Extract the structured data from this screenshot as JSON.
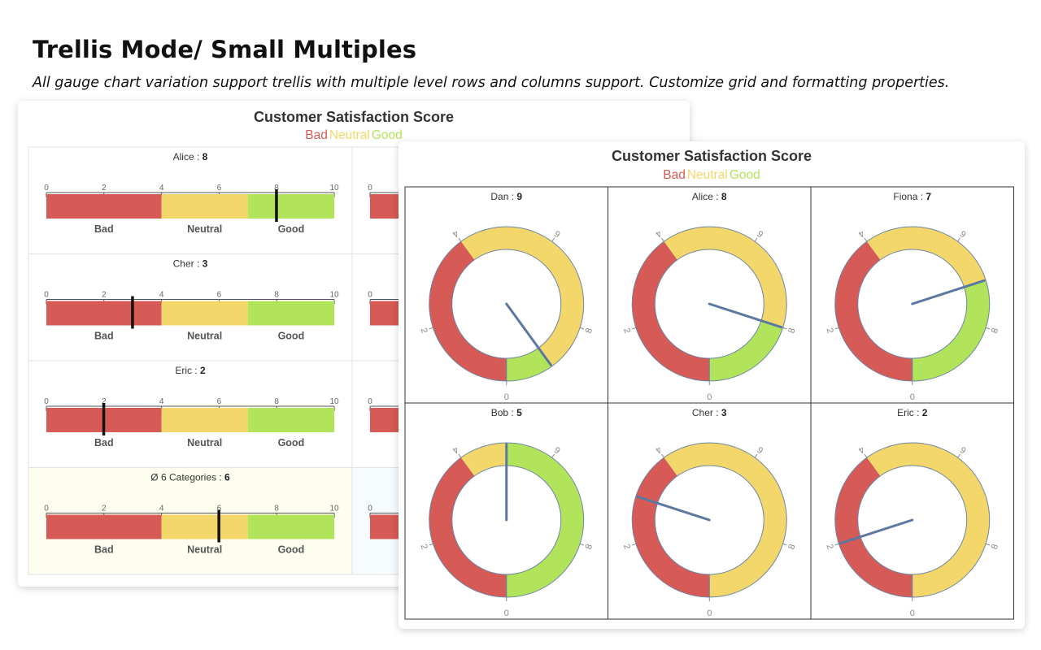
{
  "header": {
    "title": "Trellis Mode/ Small Multiples",
    "subtitle": "All gauge chart variation support trellis with multiple level rows and columns support. Customize grid and formatting properties."
  },
  "colors": {
    "bad": "#d65a55",
    "neutral": "#f4d76a",
    "good": "#b1e45a",
    "needle": "#5a78a0",
    "marker": "#111111",
    "summary_bg": "#fefef0",
    "summary_bg_right": "#f6fbfe"
  },
  "legend": [
    {
      "label": "Bad",
      "color": "#d65a55"
    },
    {
      "label": "Neutral",
      "color": "#f4d76a"
    },
    {
      "label": "Good",
      "color": "#b1e45a"
    }
  ],
  "chart_data": [
    {
      "type": "bar",
      "variant": "linear-gauge-trellis",
      "title": "Customer Satisfaction Score",
      "scale": {
        "min": 0,
        "max": 10,
        "ticks": [
          0,
          2,
          4,
          6,
          8,
          10
        ]
      },
      "bands": [
        {
          "label": "Bad",
          "from": 0,
          "to": 4
        },
        {
          "label": "Neutral",
          "from": 4,
          "to": 7
        },
        {
          "label": "Good",
          "from": 7,
          "to": 10
        }
      ],
      "rows": [
        {
          "name": "Alice",
          "value": 8
        },
        {
          "name": "Cher",
          "value": 3
        },
        {
          "name": "Eric",
          "value": 2
        },
        {
          "name": "Ø 6 Categories",
          "value": 6,
          "summary": true
        }
      ]
    },
    {
      "type": "pie",
      "variant": "radial-gauge-trellis",
      "title": "Customer Satisfaction Score",
      "scale": {
        "min": 0,
        "max": 10,
        "ticks": [
          0,
          2,
          4,
          6,
          8
        ]
      },
      "bands": [
        {
          "label": "Bad",
          "from": 0,
          "to": 4
        },
        {
          "label": "Neutral",
          "from": 4,
          "to": 7
        },
        {
          "label": "Good",
          "from": 7,
          "to": 10
        }
      ],
      "cells": [
        {
          "name": "Dan",
          "value": 9
        },
        {
          "name": "Alice",
          "value": 8
        },
        {
          "name": "Fiona",
          "value": 7
        },
        {
          "name": "Bob",
          "value": 5
        },
        {
          "name": "Cher",
          "value": 3
        },
        {
          "name": "Eric",
          "value": 2
        }
      ]
    }
  ]
}
